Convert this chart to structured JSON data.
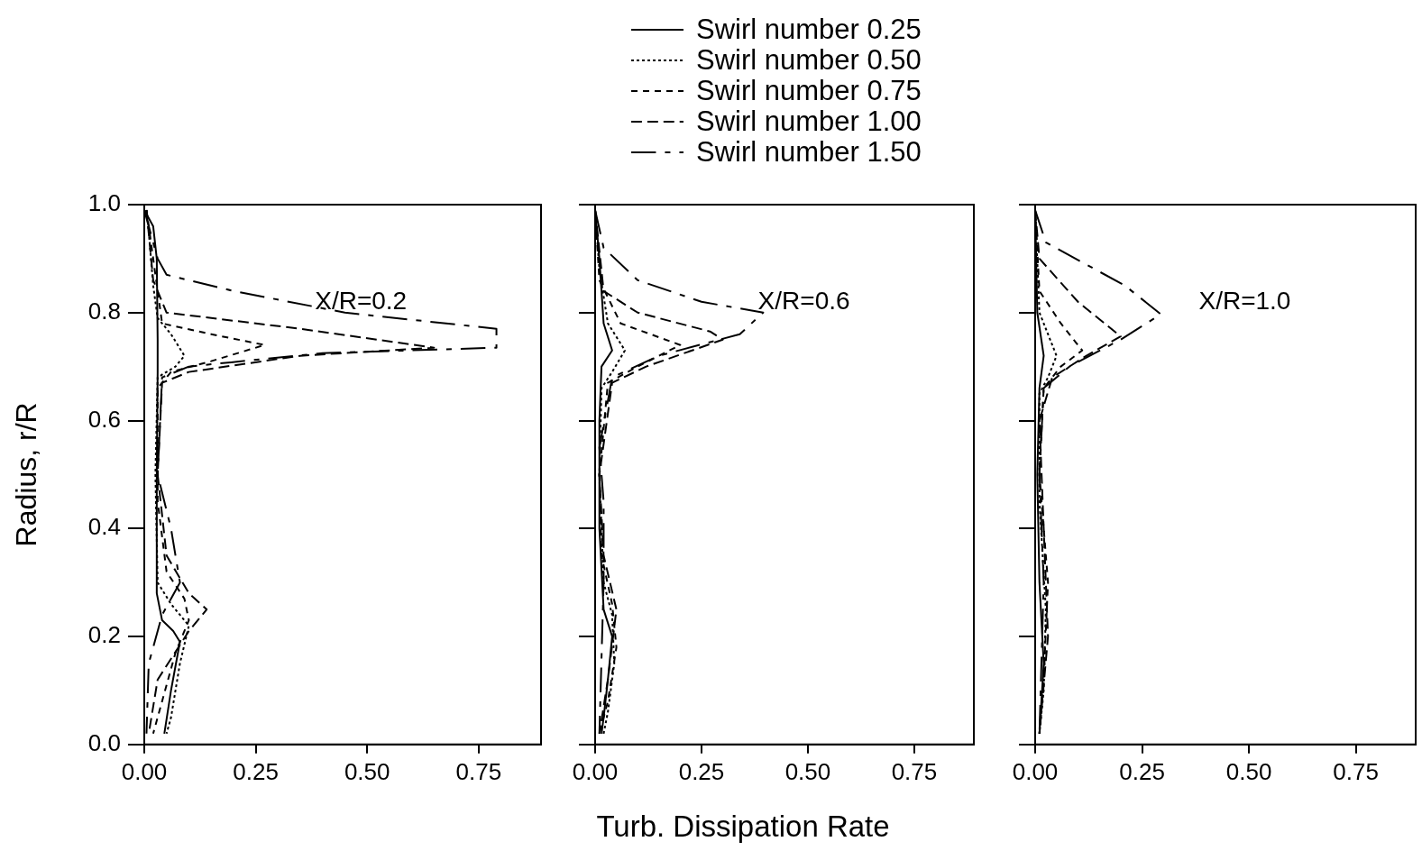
{
  "chart_data": [
    {
      "type": "line",
      "ylabel": "Radius, r/R",
      "annotations": [
        "X/R=0.2"
      ],
      "legend": "top",
      "grid": false,
      "xlim": [
        0,
        0.89
      ],
      "ylim": [
        0,
        1
      ],
      "xticks": [
        {
          "value": 0,
          "label": "0.00"
        },
        {
          "value": 0.25,
          "label": "0.25"
        },
        {
          "value": 0.5,
          "label": "0.50"
        },
        {
          "value": 0.75,
          "label": "0.75"
        }
      ],
      "yticks": [
        {
          "value": 0,
          "label": "0.0"
        },
        {
          "value": 0.2,
          "label": "0.2"
        },
        {
          "value": 0.4,
          "label": "0.4"
        },
        {
          "value": 0.6,
          "label": "0.6"
        },
        {
          "value": 0.8,
          "label": "0.8"
        },
        {
          "value": 1,
          "label": "1.0"
        }
      ],
      "series": [
        {
          "name": "Swirl number 0.25",
          "color": "#000000",
          "line_style": "solid",
          "x": [
            0.0,
            0.02,
            0.028,
            0.03,
            0.03,
            0.028,
            0.028,
            0.04,
            0.065,
            0.08,
            0.06,
            0.045
          ],
          "values": [
            0.99,
            0.96,
            0.9,
            0.75,
            0.69,
            0.5,
            0.28,
            0.23,
            0.21,
            0.19,
            0.1,
            0.02
          ]
        },
        {
          "name": "Swirl number 0.50",
          "color": "#000000",
          "line_style": "dotted",
          "x": [
            0.005,
            0.01,
            0.02,
            0.03,
            0.06,
            0.09,
            0.07,
            0.03,
            0.025,
            0.03,
            0.06,
            0.1,
            0.08,
            0.06,
            0.05
          ],
          "values": [
            0.99,
            0.95,
            0.85,
            0.79,
            0.76,
            0.72,
            0.7,
            0.68,
            0.5,
            0.3,
            0.26,
            0.22,
            0.15,
            0.05,
            0.02
          ]
        },
        {
          "name": "Swirl number 0.75",
          "color": "#000000",
          "line_style": "dashed",
          "x": [
            0.005,
            0.02,
            0.04,
            0.15,
            0.27,
            0.15,
            0.06,
            0.03,
            0.03,
            0.05,
            0.09,
            0.1,
            0.07,
            0.04,
            0.02
          ],
          "values": [
            0.99,
            0.9,
            0.78,
            0.76,
            0.74,
            0.71,
            0.69,
            0.66,
            0.45,
            0.32,
            0.27,
            0.23,
            0.17,
            0.08,
            0.02
          ]
        },
        {
          "name": "Swirl number 1.00",
          "color": "#000000",
          "line_style": "dashed",
          "x": [
            0.005,
            0.02,
            0.05,
            0.35,
            0.65,
            0.35,
            0.1,
            0.04,
            0.03,
            0.05,
            0.1,
            0.14,
            0.1,
            0.03,
            0.01
          ],
          "values": [
            0.99,
            0.86,
            0.8,
            0.77,
            0.735,
            0.72,
            0.69,
            0.67,
            0.5,
            0.35,
            0.28,
            0.25,
            0.21,
            0.12,
            0.02
          ]
        },
        {
          "name": "Swirl number 1.50",
          "color": "#000000",
          "line_style": "dashed",
          "x": [
            0.0,
            0.03,
            0.05,
            0.2,
            0.45,
            0.79,
            0.79,
            0.4,
            0.1,
            0.04,
            0.03,
            0.06,
            0.08,
            0.04,
            0.01,
            0.005
          ],
          "values": [
            0.99,
            0.9,
            0.87,
            0.84,
            0.8,
            0.77,
            0.735,
            0.725,
            0.7,
            0.68,
            0.5,
            0.4,
            0.3,
            0.24,
            0.15,
            0.02
          ]
        }
      ]
    },
    {
      "type": "line",
      "xlabel": "Turb. Dissipation Rate",
      "annotations": [
        "X/R=0.6"
      ],
      "grid": false,
      "tick_labels": "x",
      "xlim": [
        0,
        0.89
      ],
      "ylim": [
        0,
        1
      ],
      "xticks": [
        {
          "value": 0,
          "label": "0.00"
        },
        {
          "value": 0.25,
          "label": "0.25"
        },
        {
          "value": 0.5,
          "label": "0.50"
        },
        {
          "value": 0.75,
          "label": "0.75"
        }
      ],
      "yticks": [
        {
          "value": 0,
          "label": null
        },
        {
          "value": 0.2,
          "label": null
        },
        {
          "value": 0.4,
          "label": null
        },
        {
          "value": 0.6,
          "label": null
        },
        {
          "value": 0.8,
          "label": null
        },
        {
          "value": 1,
          "label": null
        }
      ],
      "series": [
        {
          "color": "#000000",
          "line_style": "solid",
          "x": [
            0.0,
            0.01,
            0.02,
            0.04,
            0.015,
            0.01,
            0.01,
            0.02,
            0.04,
            0.03,
            0.02,
            0.015
          ],
          "values": [
            0.99,
            0.9,
            0.78,
            0.73,
            0.7,
            0.6,
            0.4,
            0.25,
            0.2,
            0.12,
            0.05,
            0.02
          ]
        },
        {
          "color": "#000000",
          "line_style": "dotted",
          "x": [
            0.0,
            0.01,
            0.03,
            0.07,
            0.04,
            0.015,
            0.01,
            0.02,
            0.04,
            0.045,
            0.03,
            0.02
          ],
          "values": [
            0.99,
            0.88,
            0.78,
            0.73,
            0.69,
            0.66,
            0.5,
            0.3,
            0.24,
            0.15,
            0.06,
            0.02
          ]
        },
        {
          "color": "#000000",
          "line_style": "dashed",
          "x": [
            0.0,
            0.01,
            0.06,
            0.2,
            0.1,
            0.03,
            0.01,
            0.015,
            0.04,
            0.05,
            0.03,
            0.01
          ],
          "values": [
            0.99,
            0.86,
            0.78,
            0.74,
            0.7,
            0.67,
            0.5,
            0.35,
            0.26,
            0.18,
            0.08,
            0.02
          ]
        },
        {
          "color": "#000000",
          "line_style": "dashed",
          "x": [
            0.0,
            0.02,
            0.1,
            0.27,
            0.3,
            0.12,
            0.04,
            0.01,
            0.02,
            0.05,
            0.03,
            0.01
          ],
          "values": [
            0.99,
            0.84,
            0.8,
            0.765,
            0.75,
            0.7,
            0.67,
            0.5,
            0.35,
            0.25,
            0.12,
            0.02
          ]
        },
        {
          "color": "#000000",
          "line_style": "dashed",
          "x": [
            0.0,
            0.02,
            0.1,
            0.25,
            0.395,
            0.34,
            0.15,
            0.04,
            0.01,
            0.02,
            0.02,
            0.01
          ],
          "values": [
            0.99,
            0.92,
            0.86,
            0.82,
            0.8,
            0.76,
            0.72,
            0.68,
            0.55,
            0.45,
            0.3,
            0.02
          ]
        }
      ]
    },
    {
      "type": "line",
      "annotations": [
        "X/R=1.0"
      ],
      "grid": false,
      "tick_labels": "x",
      "xlim": [
        0,
        0.89
      ],
      "ylim": [
        0,
        1
      ],
      "xticks": [
        {
          "value": 0,
          "label": "0.00"
        },
        {
          "value": 0.25,
          "label": "0.25"
        },
        {
          "value": 0.5,
          "label": "0.50"
        },
        {
          "value": 0.75,
          "label": "0.75"
        }
      ],
      "yticks": [
        {
          "value": 0,
          "label": null
        },
        {
          "value": 0.2,
          "label": null
        },
        {
          "value": 0.4,
          "label": null
        },
        {
          "value": 0.6,
          "label": null
        },
        {
          "value": 0.8,
          "label": null
        },
        {
          "value": 1,
          "label": null
        }
      ],
      "series": [
        {
          "color": "#000000",
          "line_style": "solid",
          "x": [
            0.0,
            0.005,
            0.02,
            0.01,
            0.005,
            0.01,
            0.02,
            0.01
          ],
          "values": [
            0.99,
            0.8,
            0.72,
            0.66,
            0.5,
            0.3,
            0.15,
            0.02
          ]
        },
        {
          "color": "#000000",
          "line_style": "dotted",
          "x": [
            0.0,
            0.01,
            0.05,
            0.03,
            0.01,
            0.01,
            0.025,
            0.02,
            0.01
          ],
          "values": [
            0.99,
            0.8,
            0.72,
            0.68,
            0.65,
            0.45,
            0.25,
            0.1,
            0.02
          ]
        },
        {
          "color": "#000000",
          "line_style": "dashed",
          "x": [
            0.0,
            0.01,
            0.06,
            0.11,
            0.06,
            0.02,
            0.01,
            0.03,
            0.02,
            0.01
          ],
          "values": [
            0.99,
            0.84,
            0.78,
            0.73,
            0.7,
            0.66,
            0.5,
            0.3,
            0.12,
            0.02
          ]
        },
        {
          "color": "#000000",
          "line_style": "dashed",
          "x": [
            0.0,
            0.01,
            0.1,
            0.2,
            0.12,
            0.04,
            0.01,
            0.02,
            0.03,
            0.01
          ],
          "values": [
            0.99,
            0.9,
            0.82,
            0.756,
            0.72,
            0.68,
            0.6,
            0.4,
            0.2,
            0.02
          ]
        },
        {
          "color": "#000000",
          "line_style": "dashed",
          "x": [
            0.0,
            0.025,
            0.21,
            0.294,
            0.2,
            0.08,
            0.02,
            0.01,
            0.02,
            0.01
          ],
          "values": [
            0.99,
            0.93,
            0.85,
            0.797,
            0.75,
            0.7,
            0.66,
            0.5,
            0.3,
            0.02
          ]
        }
      ]
    }
  ]
}
